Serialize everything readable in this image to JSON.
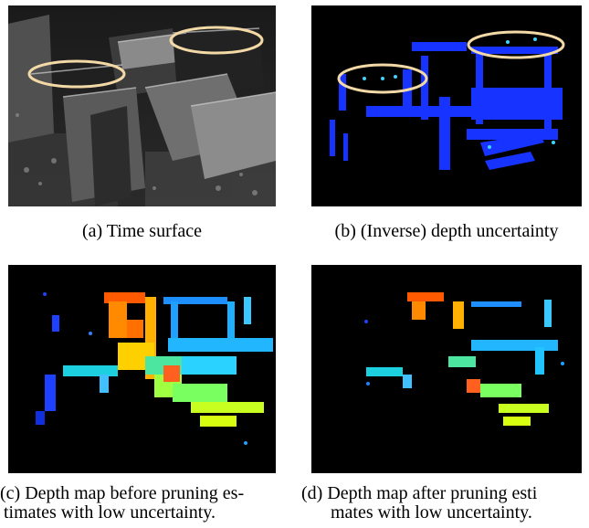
{
  "panels": [
    {
      "caption": "(a) Time surface"
    },
    {
      "caption": "(b) (Inverse) depth uncertainty"
    },
    {
      "caption_line1": "(c) Depth map before pruning es-",
      "caption_line2": "timates with low uncertainty."
    },
    {
      "caption_line1": "(d) Depth map after pruning esti",
      "caption_line2": "mates with low uncertainty."
    }
  ],
  "colors": {
    "background": "#000000",
    "highlight_ellipse": "#f2d9a6",
    "uncertainty_blue": "#1733ff",
    "depth_colormap": "jet"
  }
}
